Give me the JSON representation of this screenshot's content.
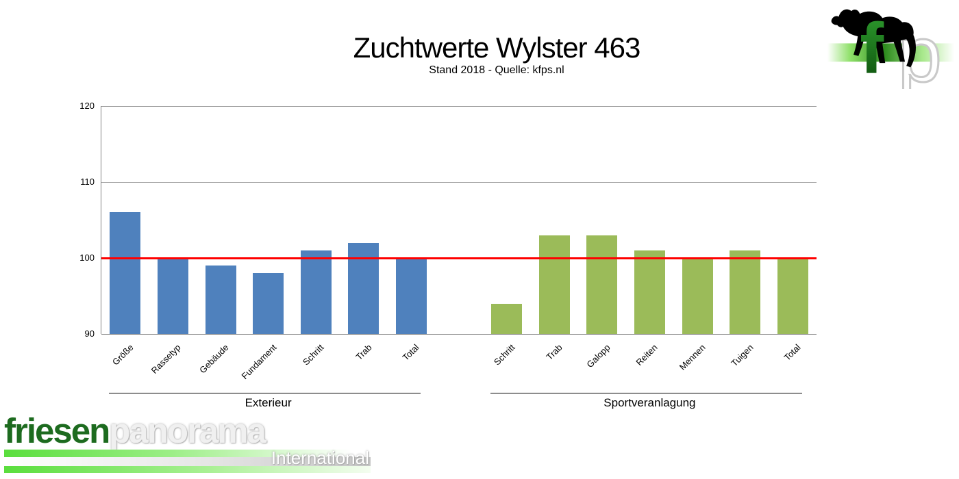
{
  "chart_data": {
    "type": "bar",
    "title": "Zuchtwerte Wylster 463",
    "subtitle": "Stand 2018 - Quelle: kfps.nl",
    "ylim": [
      90,
      120
    ],
    "yticks": [
      90,
      100,
      110,
      120
    ],
    "grid": true,
    "legend": "none",
    "reference_line": {
      "value": 100,
      "color": "#FF0000"
    },
    "gridline_color": "#999999",
    "axis_color": "#808080",
    "groups": [
      {
        "label": "Exterieur",
        "color": "#4F81BD",
        "categories": [
          "Größe",
          "Rassetyp",
          "Gebäude",
          "Fundament",
          "Schritt",
          "Trab",
          "Total"
        ],
        "values": [
          106,
          100,
          99,
          98,
          101,
          102,
          100
        ]
      },
      {
        "label": "Sportveranlagung",
        "color": "#9BBB59",
        "categories": [
          "Schritt",
          "Trab",
          "Galopp",
          "Reiten",
          "Mennen",
          "Tuigen",
          "Total"
        ],
        "values": [
          94,
          103,
          103,
          101,
          100,
          101,
          100
        ]
      }
    ]
  },
  "branding": {
    "corner_logo": {
      "letter_f": "f",
      "letter_p": "p",
      "horse_icon": "friesian-horse-silhouette",
      "band_green": "#2D8A1E"
    },
    "footer_logo": {
      "wordmark_part1": "friesen",
      "wordmark_part2": "panorama",
      "tagline": "International",
      "green": "#1D6B1F"
    }
  }
}
